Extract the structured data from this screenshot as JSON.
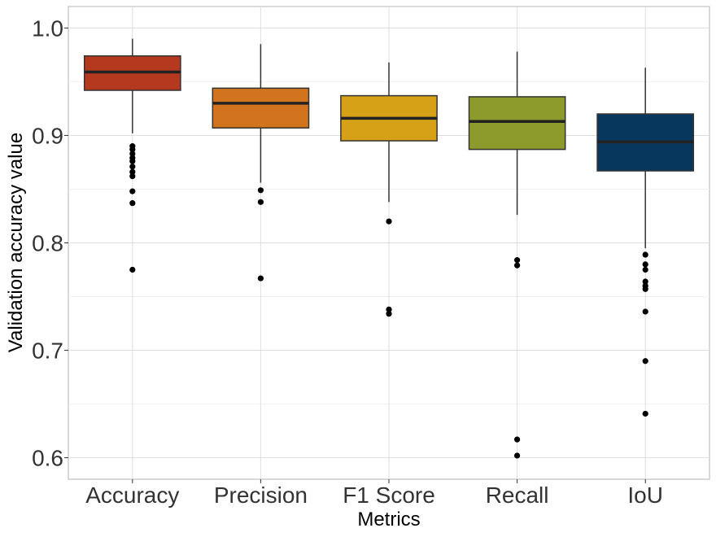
{
  "chart_data": {
    "type": "boxplot",
    "xlabel": "Metrics",
    "ylabel": "Validation accuracy value",
    "ylim": [
      0.58,
      1.02
    ],
    "yticks": [
      0.6,
      0.7,
      0.8,
      0.9,
      1.0
    ],
    "ytick_labels": [
      "0.6",
      "0.7",
      "0.8",
      "0.9",
      "1.0"
    ],
    "grid": true,
    "legend": "none",
    "categories": [
      "Accuracy",
      "Precision",
      "F1 Score",
      "Recall",
      "IoU"
    ],
    "boxes": [
      {
        "category": "Accuracy",
        "color": "#B5391F",
        "whisker_low": 0.902,
        "q1": 0.942,
        "median": 0.959,
        "q3": 0.974,
        "whisker_high": 0.99,
        "outliers": [
          0.89,
          0.887,
          0.883,
          0.879,
          0.876,
          0.871,
          0.866,
          0.862,
          0.848,
          0.837,
          0.775
        ]
      },
      {
        "category": "Precision",
        "color": "#D2741E",
        "whisker_low": 0.856,
        "q1": 0.907,
        "median": 0.93,
        "q3": 0.944,
        "whisker_high": 0.985,
        "outliers": [
          0.849,
          0.838,
          0.767
        ]
      },
      {
        "category": "F1 Score",
        "color": "#D6A017",
        "whisker_low": 0.838,
        "q1": 0.895,
        "median": 0.916,
        "q3": 0.937,
        "whisker_high": 0.968,
        "outliers": [
          0.82,
          0.738,
          0.734
        ]
      },
      {
        "category": "Recall",
        "color": "#8D9A2C",
        "whisker_low": 0.826,
        "q1": 0.887,
        "median": 0.913,
        "q3": 0.936,
        "whisker_high": 0.978,
        "outliers": [
          0.784,
          0.779,
          0.617,
          0.602
        ]
      },
      {
        "category": "IoU",
        "color": "#08375E",
        "whisker_low": 0.795,
        "q1": 0.867,
        "median": 0.894,
        "q3": 0.92,
        "whisker_high": 0.963,
        "outliers": [
          0.789,
          0.78,
          0.775,
          0.764,
          0.76,
          0.757,
          0.736,
          0.69,
          0.641
        ]
      }
    ]
  }
}
